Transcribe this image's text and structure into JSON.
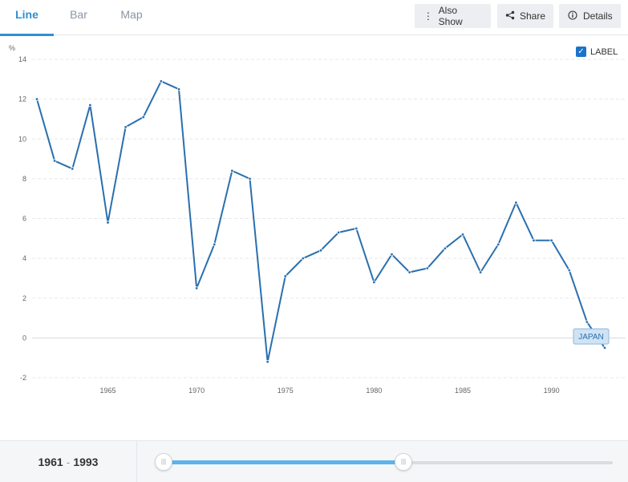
{
  "tabs": [
    {
      "label": "Line",
      "active": true
    },
    {
      "label": "Bar",
      "active": false
    },
    {
      "label": "Map",
      "active": false
    }
  ],
  "toolbar": {
    "also_show": "Also Show",
    "share": "Share",
    "details": "Details"
  },
  "legend": {
    "label": "LABEL",
    "checked": true
  },
  "range": {
    "start": "1961",
    "sep": "-",
    "end": "1993"
  },
  "colors": {
    "line": "#2a6fae",
    "accent": "#2f8fd1",
    "slider_fill": "#5db3ea"
  },
  "chart_data": {
    "type": "line",
    "ylabel": "%",
    "ylim": [
      -2,
      14
    ],
    "yticks": [
      -2,
      0,
      2,
      4,
      6,
      8,
      10,
      12,
      14
    ],
    "xticks": [
      1965,
      1970,
      1975,
      1980,
      1985,
      1990
    ],
    "x": [
      1961,
      1962,
      1963,
      1964,
      1965,
      1966,
      1967,
      1968,
      1969,
      1970,
      1971,
      1972,
      1973,
      1974,
      1975,
      1976,
      1977,
      1978,
      1979,
      1980,
      1981,
      1982,
      1983,
      1984,
      1985,
      1986,
      1987,
      1988,
      1989,
      1990,
      1991,
      1992,
      1993
    ],
    "series": [
      {
        "name": "JAPAN",
        "values": [
          12.0,
          8.9,
          8.5,
          11.7,
          5.8,
          10.6,
          11.1,
          12.9,
          12.5,
          2.5,
          4.7,
          8.4,
          8.0,
          -1.2,
          3.1,
          4.0,
          4.4,
          5.3,
          5.5,
          2.8,
          4.2,
          3.3,
          3.5,
          4.5,
          5.2,
          3.3,
          4.7,
          6.8,
          4.9,
          4.9,
          3.4,
          0.8,
          -0.5
        ]
      }
    ],
    "grid": true,
    "legend": "top-right"
  }
}
